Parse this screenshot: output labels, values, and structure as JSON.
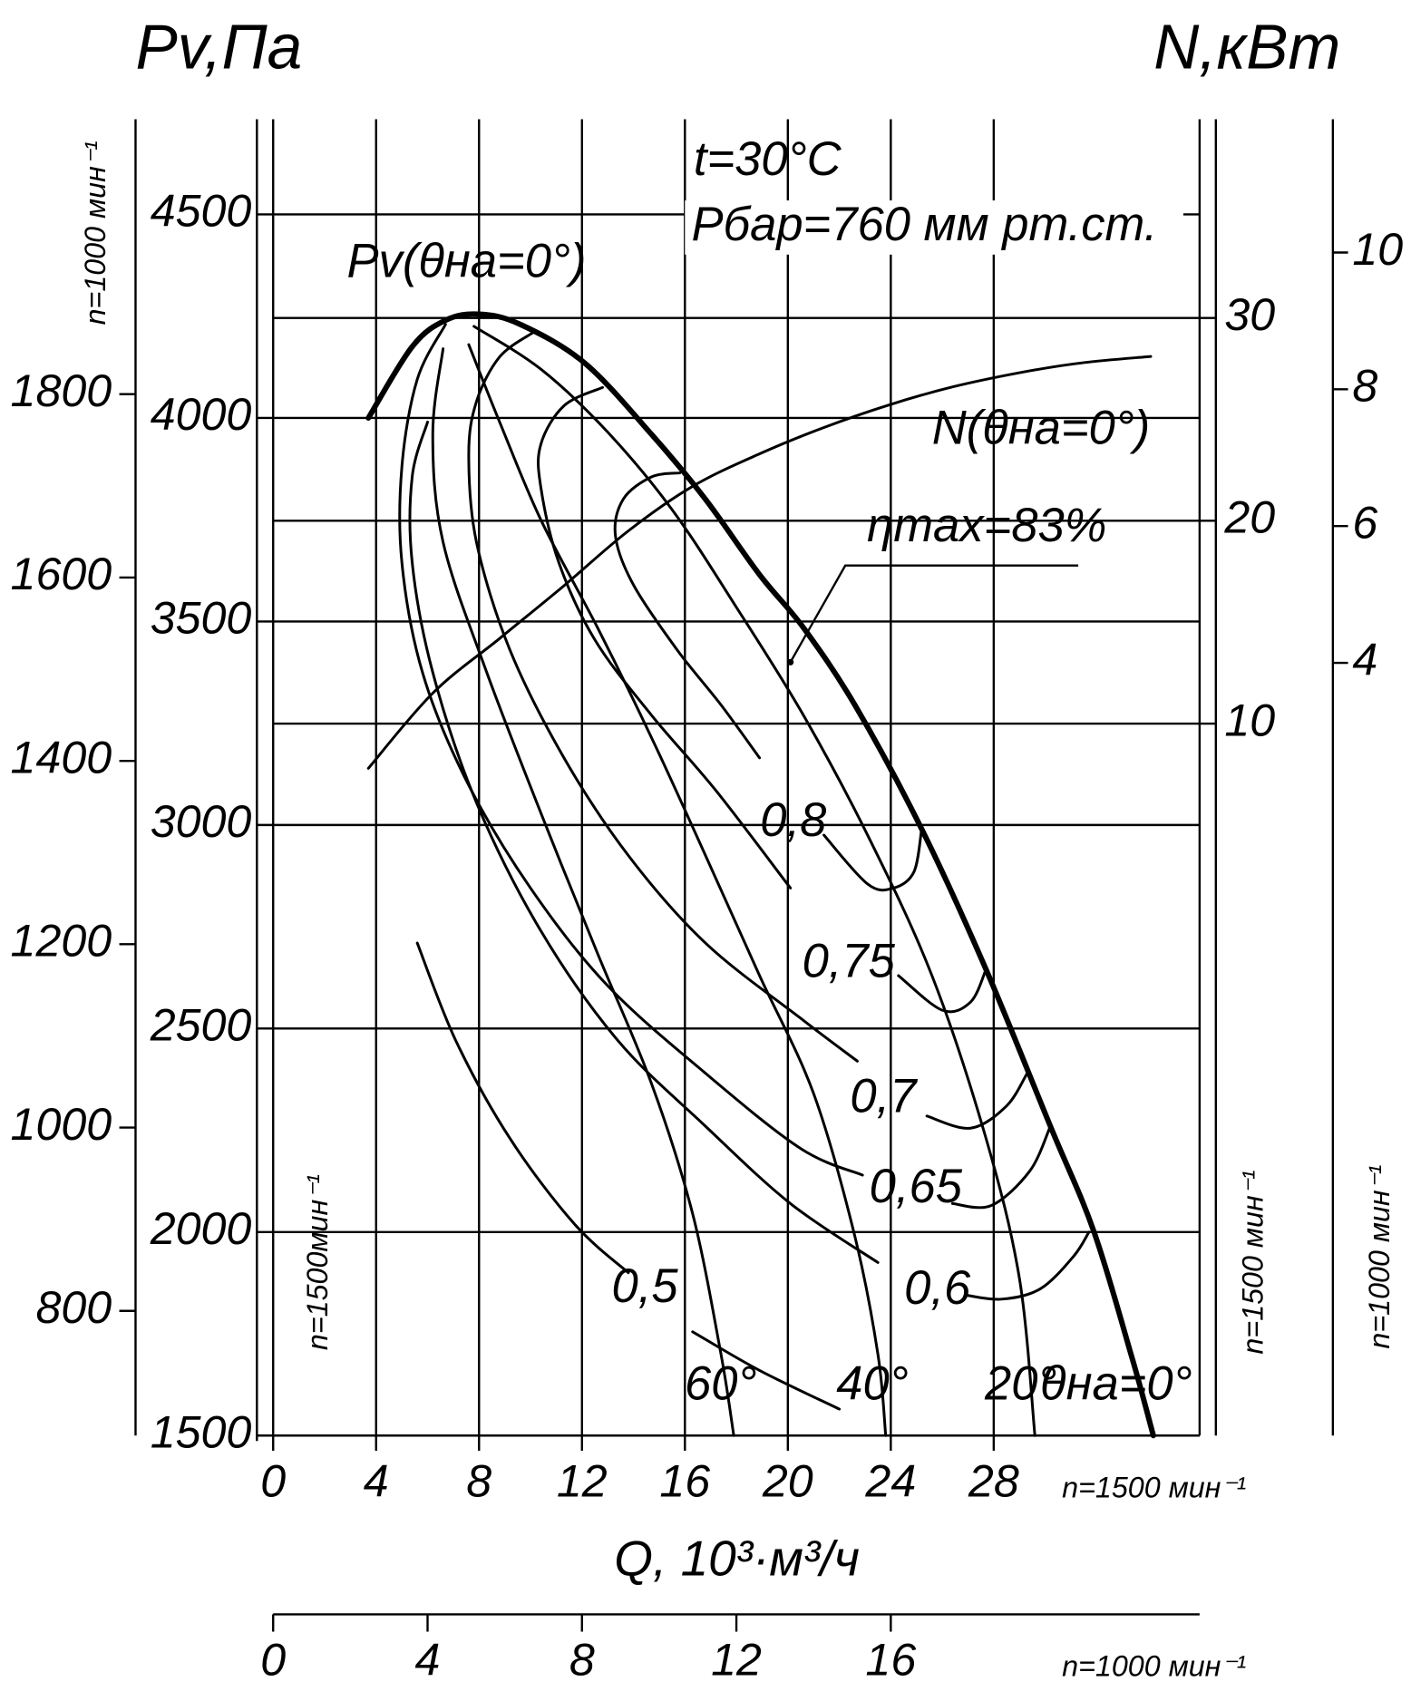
{
  "chart_data": {
    "type": "line",
    "y_label": "Pv,Па",
    "y2_label": "N,кВт",
    "x_label": "Q, 10³·м³/ч",
    "x_note": "n=1500 мин⁻¹",
    "x2_note": "n=1000 мин⁻¹",
    "y_note": "n=1500мин⁻¹",
    "y2_note": "n=1500 мин⁻¹",
    "y3_note": "n=1000 мин⁻¹",
    "y4_note": "n=1000 мин⁻¹",
    "xlim": [
      0,
      36
    ],
    "xticks": [
      0,
      4,
      8,
      12,
      16,
      20,
      24,
      28
    ],
    "x2lim": [
      0,
      24
    ],
    "x2ticks": [
      0,
      4,
      8,
      12,
      16
    ],
    "ylim": [
      1500,
      4734
    ],
    "yticks": [
      1500,
      2000,
      2500,
      3000,
      3500,
      4000,
      4500
    ],
    "y2lim": [
      -25.1,
      39.8
    ],
    "y2ticks": [
      10,
      20,
      30
    ],
    "y3lim": [
      664,
      2100
    ],
    "y3ticks": [
      800,
      1000,
      1200,
      1400,
      1600,
      1800
    ],
    "y4lim": [
      -7.3,
      11.95
    ],
    "y4ticks": [
      4,
      6,
      8,
      10
    ],
    "grid": true,
    "series": [
      {
        "name": "Pv(θна=0°)",
        "color": "#000",
        "linewidth": 5,
        "x": [
          3.7,
          5.4,
          6.7,
          8.0,
          9.6,
          12.1,
          14.7,
          16.8,
          18.9,
          20.6,
          22.6,
          25.2,
          27.7,
          30.2,
          31.9,
          33.4,
          34.2
        ],
        "values": [
          4000,
          4175,
          4240,
          4255,
          4230,
          4135,
          3960,
          3800,
          3615,
          3485,
          3295,
          2990,
          2645,
          2260,
          2000,
          1685,
          1500
        ]
      },
      {
        "name": "20°",
        "color": "#000",
        "linewidth": 2.5,
        "x": [
          7.8,
          10.4,
          13.0,
          15.5,
          18.0,
          20.6,
          23.1,
          25.6,
          27.7,
          29.0,
          29.6
        ],
        "values": [
          4225,
          4120,
          3965,
          3775,
          3535,
          3270,
          2975,
          2630,
          2230,
          1885,
          1500
        ]
      },
      {
        "name": "40°",
        "color": "#000",
        "linewidth": 2.5,
        "x": [
          7.6,
          8.8,
          10.4,
          12.6,
          14.7,
          16.8,
          18.9,
          21.0,
          22.6,
          23.5,
          23.8
        ],
        "values": [
          4180,
          3990,
          3750,
          3485,
          3215,
          2925,
          2630,
          2340,
          1990,
          1700,
          1500
        ]
      },
      {
        "name": "60°",
        "color": "#000",
        "linewidth": 2.5,
        "x": [
          6.6,
          6.2,
          6.6,
          8.3,
          10.4,
          12.6,
          14.7,
          16.3,
          17.4,
          17.9
        ],
        "values": [
          4170,
          3960,
          3695,
          3375,
          3030,
          2685,
          2365,
          2045,
          1700,
          1500
        ]
      },
      {
        "name": "0,8",
        "color": "#000",
        "linewidth": 2.5,
        "x": [
          15.8,
          14.7,
          13.6,
          13.3,
          14.0,
          15.7,
          17.4,
          18.9,
          null,
          21.4,
          23.1,
          24.1,
          24.9,
          25.2
        ],
        "values": [
          3865,
          3855,
          3800,
          3710,
          3590,
          3430,
          3295,
          3165,
          null,
          2975,
          2855,
          2845,
          2885,
          2990
        ]
      },
      {
        "name": "0,75",
        "color": "#000",
        "linewidth": 2.5,
        "x": [
          12.8,
          11.3,
          10.4,
          10.4,
          11.1,
          12.5,
          14.7,
          17.2,
          20.1,
          null,
          24.3,
          26.0,
          27.1,
          27.7
        ],
        "values": [
          4075,
          4030,
          3935,
          3830,
          3645,
          3455,
          3270,
          3085,
          2845,
          null,
          2630,
          2545,
          2565,
          2645
        ]
      },
      {
        "name": "0,7",
        "color": "#000",
        "linewidth": 2.5,
        "x": [
          10.1,
          8.8,
          7.9,
          7.6,
          7.9,
          9.2,
          11.3,
          13.8,
          16.8,
          20.5,
          22.7,
          null,
          25.4,
          27.1,
          28.5,
          29.3
        ],
        "values": [
          4210,
          4150,
          4040,
          3910,
          3695,
          3430,
          3165,
          2925,
          2710,
          2525,
          2420,
          null,
          2285,
          2255,
          2310,
          2390
        ]
      },
      {
        "name": "0,65",
        "color": "#000",
        "linewidth": 2.5,
        "x": [
          6.7,
          5.6,
          5.0,
          5.0,
          5.8,
          7.5,
          10.0,
          13.0,
          16.8,
          20.5,
          22.9,
          null,
          26.4,
          27.9,
          29.4,
          30.2
        ],
        "values": [
          4230,
          4095,
          3880,
          3645,
          3375,
          3110,
          2845,
          2605,
          2390,
          2205,
          2140,
          null,
          2070,
          2065,
          2150,
          2260
        ]
      },
      {
        "name": "0,6",
        "color": "#000",
        "linewidth": 2.5,
        "x": [
          6.0,
          5.4,
          5.4,
          6.2,
          7.9,
          10.4,
          13.4,
          16.8,
          20.1,
          23.5,
          null,
          26.9,
          28.3,
          29.8,
          31.1,
          31.7
        ],
        "values": [
          3990,
          3855,
          3645,
          3375,
          3055,
          2740,
          2470,
          2260,
          2070,
          1925,
          null,
          1845,
          1835,
          1860,
          1940,
          2000
        ]
      },
      {
        "name": "0,5",
        "color": "#000",
        "linewidth": 2.5,
        "x": [
          5.6,
          7.1,
          9.2,
          11.7,
          13.8,
          null,
          16.3,
          18.9,
          22.0
        ],
        "values": [
          2710,
          2470,
          2230,
          2020,
          1900,
          null,
          1755,
          1660,
          1565
        ]
      },
      {
        "name": "N(θна=0°)",
        "color": "#000",
        "linewidth": 2.5,
        "axis": "y2",
        "x": [
          3.7,
          6.2,
          8.8,
          11.3,
          13.8,
          16.3,
          18.9,
          21.4,
          23.9,
          26.4,
          29.0,
          31.5,
          34.1
        ],
        "values": [
          7.8,
          11.5,
          14.2,
          16.8,
          19.5,
          21.7,
          23.3,
          24.6,
          25.7,
          26.6,
          27.3,
          27.8,
          28.1
        ]
      }
    ],
    "annotations": [
      {
        "text": "t=30°C"
      },
      {
        "text": "Pбар=760 мм рт.ст."
      },
      {
        "text": "ηmax=83%",
        "x": 20.1,
        "y": 3400
      },
      {
        "text": "θна=0°"
      }
    ]
  }
}
